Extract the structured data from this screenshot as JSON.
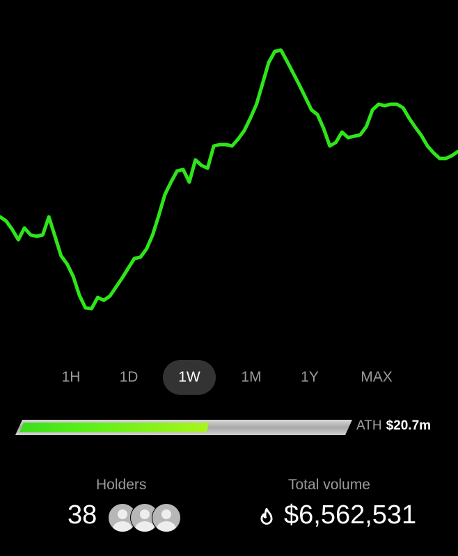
{
  "chart_data": {
    "type": "line",
    "color": "#2ee51a",
    "series": [
      {
        "values": [
          148,
          142,
          130,
          115,
          132,
          122,
          120,
          122,
          148,
          120,
          92,
          80,
          62,
          35,
          17,
          16,
          32,
          28,
          34,
          47,
          60,
          74,
          88,
          90,
          102,
          122,
          150,
          180,
          198,
          214,
          216,
          198,
          230,
          222,
          218,
          250,
          252,
          252,
          250,
          260,
          272,
          290,
          310,
          340,
          370,
          386,
          388,
          372,
          355,
          338,
          320,
          302,
          295,
          275,
          250,
          255,
          270,
          262,
          264,
          266,
          278,
          302,
          310,
          308,
          310,
          310,
          305,
          290,
          277,
          265,
          250,
          240,
          232,
          232,
          236,
          242
        ]
      }
    ]
  },
  "ranges": {
    "items": [
      "1H",
      "1D",
      "1W",
      "1M",
      "1Y",
      "MAX"
    ],
    "selected": "1W"
  },
  "ath": {
    "label": "ATH",
    "value": "$20.7m",
    "progress_percent": 57
  },
  "holders": {
    "label": "Holders",
    "count": "38"
  },
  "volume": {
    "label": "Total volume",
    "value": "$6,562,531",
    "icon": "flame-icon"
  }
}
